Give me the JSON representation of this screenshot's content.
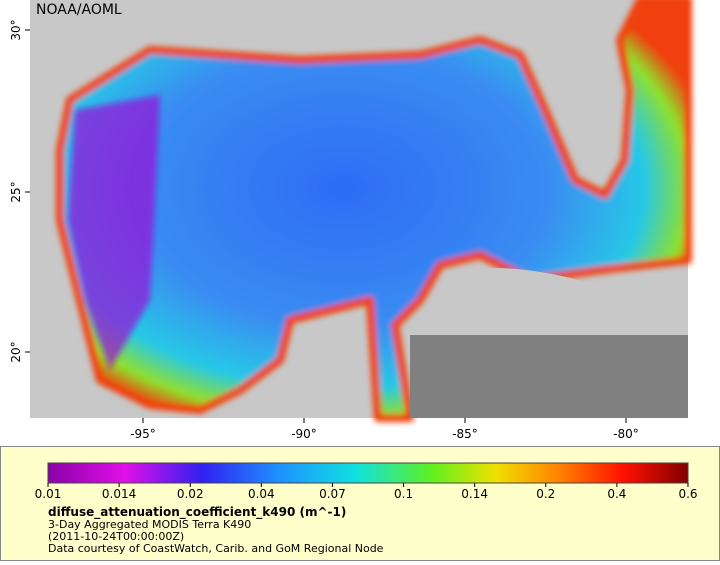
{
  "map": {
    "watermark": "NOAA/AOML",
    "x_tick_labels": [
      "-95°",
      "-90°",
      "-85°",
      "-80°"
    ],
    "y_tick_labels": [
      "30°",
      "25°",
      "20°"
    ]
  },
  "legend": {
    "colorbar_labels": [
      "0.01",
      "0.014",
      "0.02",
      "0.04",
      "0.07",
      "0.1",
      "0.14",
      "0.2",
      "0.4",
      "0.6"
    ],
    "variable": "diffuse_attenuation_coefficient_k490 (m^-1)",
    "description": "3-Day Aggregated MODIS Terra K490",
    "time": "(2011-10-24T00:00:00Z)",
    "credit": "Data courtesy of CoastWatch, Carib. and GoM Regional Node"
  }
}
